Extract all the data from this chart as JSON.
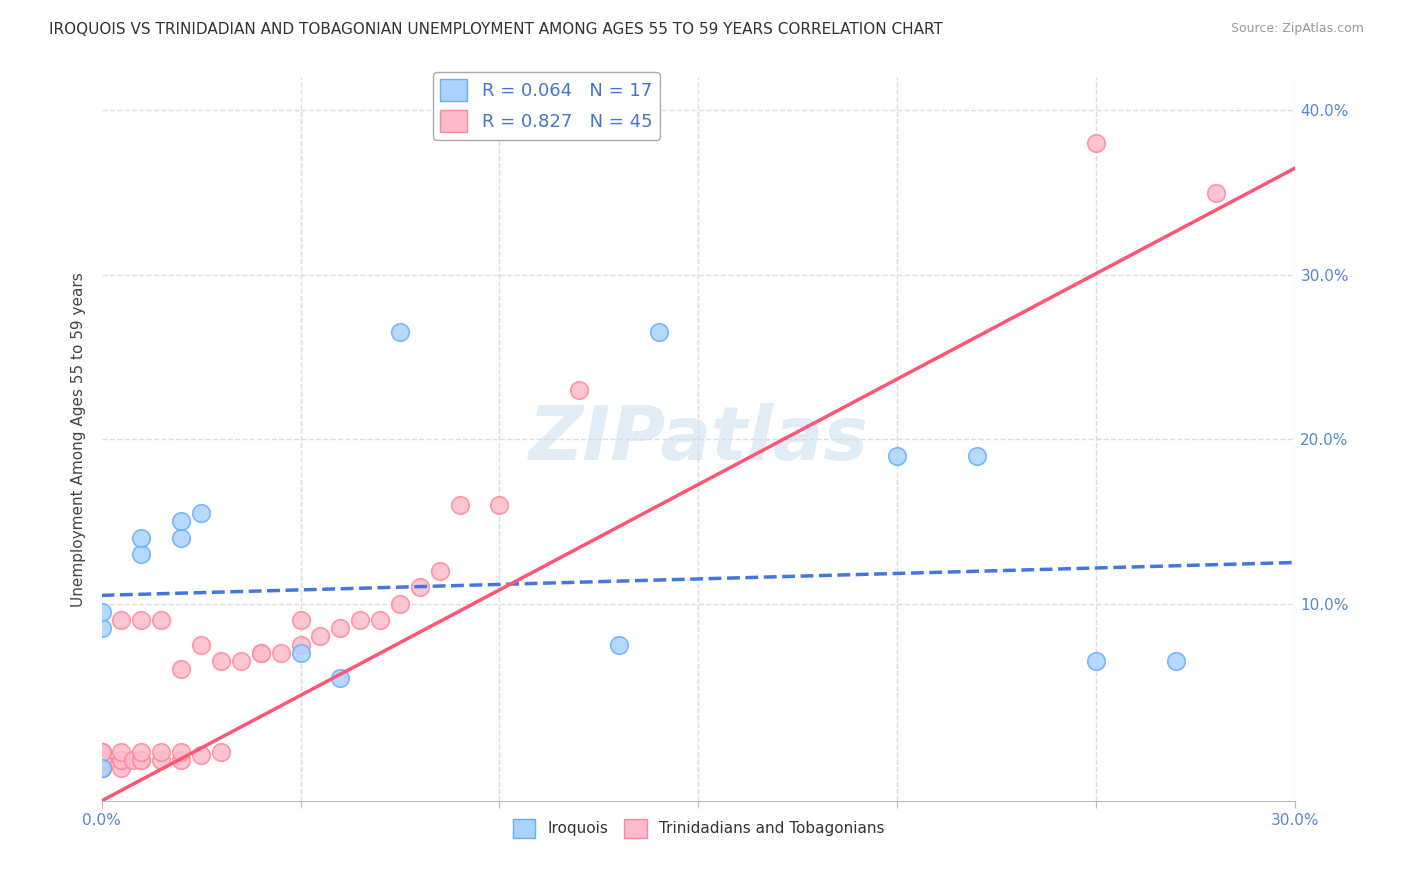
{
  "title": "IROQUOIS VS TRINIDADIAN AND TOBAGONIAN UNEMPLOYMENT AMONG AGES 55 TO 59 YEARS CORRELATION CHART",
  "source": "Source: ZipAtlas.com",
  "ylabel": "Unemployment Among Ages 55 to 59 years",
  "xlabel": "",
  "xlim": [
    0.0,
    0.3
  ],
  "ylim": [
    -0.02,
    0.42
  ],
  "xticks": [
    0.0,
    0.05,
    0.1,
    0.15,
    0.2,
    0.25,
    0.3
  ],
  "yticks": [
    0.0,
    0.1,
    0.2,
    0.3,
    0.4
  ],
  "background_color": "#ffffff",
  "grid_color": "#dddddd",
  "watermark": "ZIPatlas",
  "iroquois_color": "#6aabff",
  "iroquois_color_fill": "#aad4ff",
  "trinidadian_color": "#ff8899",
  "trinidadian_color_fill": "#ffbbcc",
  "iroquois_R": "0.064",
  "iroquois_N": "17",
  "trinidadian_R": "0.827",
  "trinidadian_N": "45",
  "iroquois_x": [
    0.0,
    0.0,
    0.0,
    0.01,
    0.01,
    0.02,
    0.02,
    0.025,
    0.05,
    0.06,
    0.075,
    0.13,
    0.14,
    0.2,
    0.22,
    0.25,
    0.27
  ],
  "iroquois_y": [
    0.0,
    0.085,
    0.095,
    0.13,
    0.14,
    0.14,
    0.15,
    0.155,
    0.07,
    0.055,
    0.265,
    0.075,
    0.265,
    0.19,
    0.19,
    0.065,
    0.065
  ],
  "trinidadian_x": [
    0.0,
    0.0,
    0.0,
    0.0,
    0.0,
    0.0,
    0.0,
    0.005,
    0.005,
    0.005,
    0.005,
    0.005,
    0.008,
    0.01,
    0.01,
    0.01,
    0.01,
    0.015,
    0.015,
    0.015,
    0.02,
    0.02,
    0.02,
    0.025,
    0.025,
    0.03,
    0.03,
    0.035,
    0.04,
    0.04,
    0.045,
    0.05,
    0.05,
    0.055,
    0.06,
    0.065,
    0.07,
    0.075,
    0.08,
    0.085,
    0.09,
    0.1,
    0.12,
    0.25,
    0.28
  ],
  "trinidadian_y": [
    0.0,
    0.0,
    0.0,
    0.005,
    0.005,
    0.01,
    0.01,
    0.0,
    0.005,
    0.005,
    0.01,
    0.09,
    0.005,
    0.005,
    0.005,
    0.01,
    0.09,
    0.005,
    0.01,
    0.09,
    0.005,
    0.01,
    0.06,
    0.008,
    0.075,
    0.01,
    0.065,
    0.065,
    0.07,
    0.07,
    0.07,
    0.075,
    0.09,
    0.08,
    0.085,
    0.09,
    0.09,
    0.1,
    0.11,
    0.12,
    0.16,
    0.16,
    0.23,
    0.38,
    0.35
  ],
  "iroquois_line_color": "#4477dd",
  "iroquois_line_style": "--",
  "trinidadian_line_color": "#ff5577",
  "trinidadian_line_style": "-",
  "iroquois_line_y0": 0.105,
  "iroquois_line_y1": 0.125,
  "trinidadian_line_y0": -0.02,
  "trinidadian_line_y1": 0.365
}
